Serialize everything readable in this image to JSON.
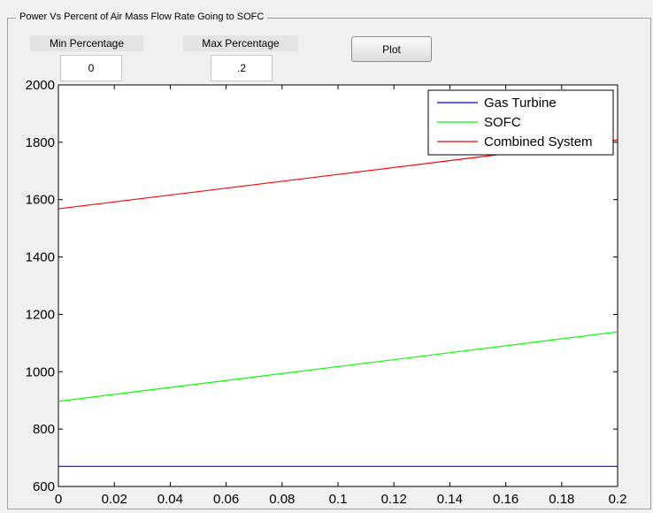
{
  "panel": {
    "title": "Power Vs Percent of Air Mass Flow Rate Going to SOFC"
  },
  "controls": {
    "min_label": "Min Percentage",
    "min_value": "0",
    "max_label": "Max Percentage",
    "max_value": ".2",
    "plot_label": "Plot"
  },
  "chart_data": {
    "type": "line",
    "xlim": [
      0,
      0.2
    ],
    "ylim": [
      600,
      2000
    ],
    "x_ticks": [
      "0",
      "0.02",
      "0.04",
      "0.06",
      "0.08",
      "0.1",
      "0.12",
      "0.14",
      "0.16",
      "0.18",
      "0.2"
    ],
    "y_ticks": [
      "600",
      "800",
      "1000",
      "1200",
      "1400",
      "1600",
      "1800",
      "2000"
    ],
    "grid": false,
    "legend_position": "top-right",
    "series": [
      {
        "name": "Gas Turbine",
        "color": "#0000ff",
        "x": [
          0,
          0.2
        ],
        "y": [
          670,
          670
        ]
      },
      {
        "name": "SOFC",
        "color": "#00ff00",
        "x": [
          0,
          0.2
        ],
        "y": [
          897,
          1139
        ]
      },
      {
        "name": "Combined System",
        "color": "#ff0000",
        "x": [
          0,
          0.2
        ],
        "y": [
          1568,
          1808
        ]
      }
    ]
  }
}
